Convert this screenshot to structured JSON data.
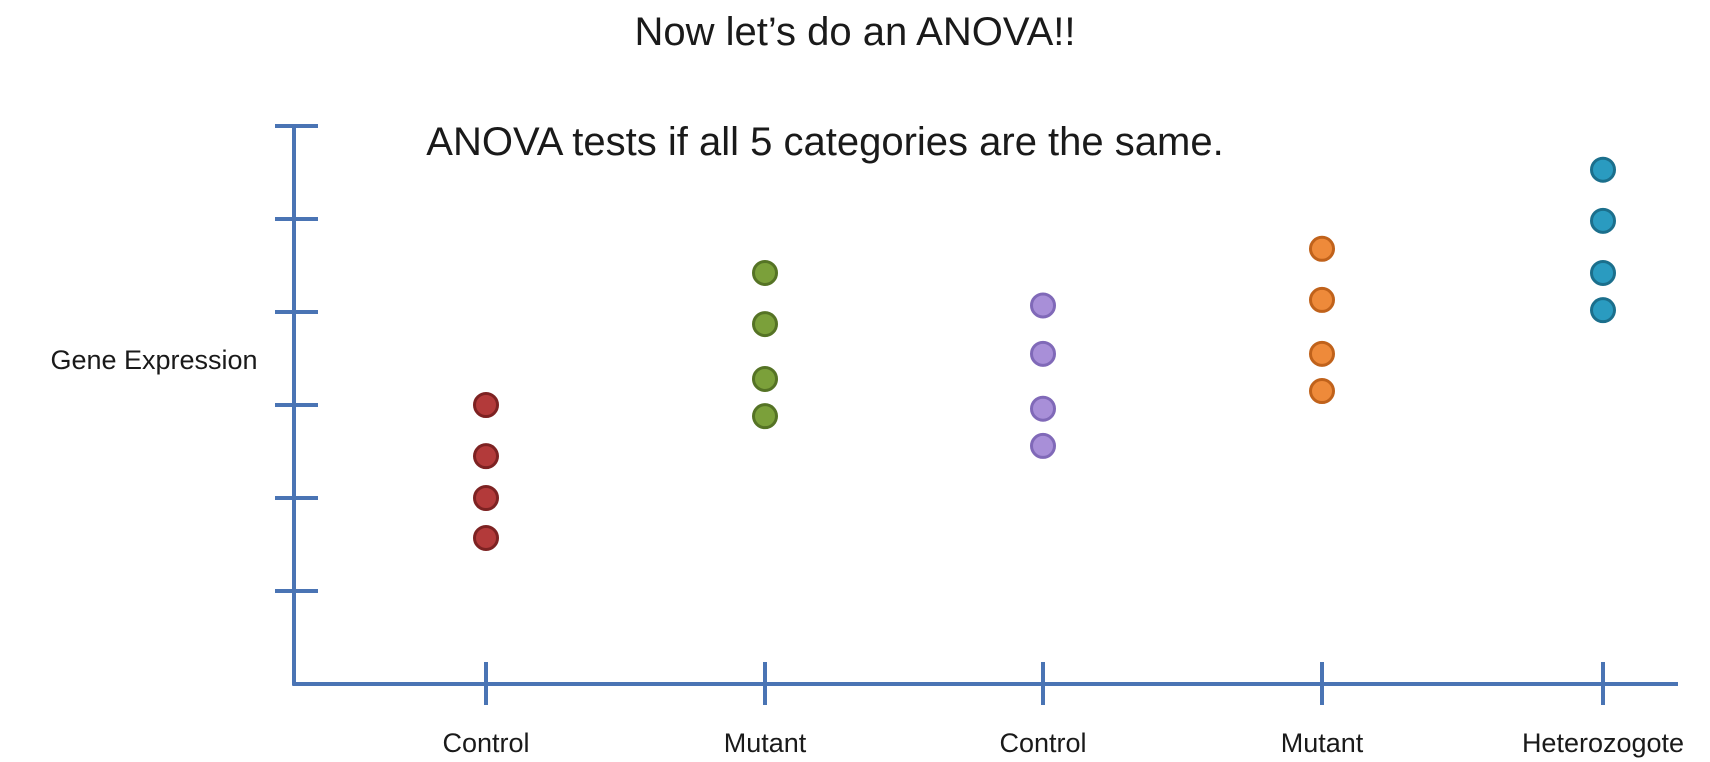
{
  "slide": {
    "title": "Now let’s do an ANOVA!!",
    "subtitle": "ANOVA tests if all 5 categories are the same."
  },
  "chart_data": {
    "type": "scatter",
    "title": "",
    "xlabel": "",
    "ylabel": "Gene Expression",
    "categories": [
      "Control",
      "Mutant",
      "Control",
      "Mutant",
      "Heterozogote"
    ],
    "ylim": [
      0,
      6
    ],
    "y_tick_count": 6,
    "y_tick_labels_shown": false,
    "grid": false,
    "legend": "none",
    "axis_color": "#4a74b4",
    "series": [
      {
        "category_index": 0,
        "color": "#b33a3a",
        "stroke": "#7d2222",
        "values": [
          1.57,
          2.0,
          2.45,
          3.0
        ]
      },
      {
        "category_index": 1,
        "color": "#7ba03a",
        "stroke": "#557325",
        "values": [
          2.88,
          3.28,
          3.87,
          4.42
        ]
      },
      {
        "category_index": 2,
        "color": "#a88fd8",
        "stroke": "#8069b8",
        "values": [
          2.56,
          2.96,
          3.55,
          4.07
        ]
      },
      {
        "category_index": 3,
        "color": "#ee8a3a",
        "stroke": "#c0621b",
        "values": [
          3.15,
          3.55,
          4.13,
          4.68
        ]
      },
      {
        "category_index": 4,
        "color": "#2a9bc0",
        "stroke": "#1b6f8c",
        "values": [
          4.02,
          4.42,
          4.98,
          5.53
        ]
      }
    ]
  }
}
